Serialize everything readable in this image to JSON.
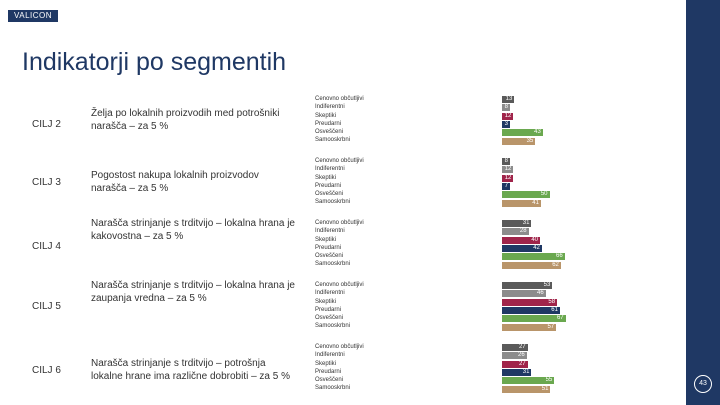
{
  "header": {
    "logo_text": "VALICON",
    "title": "Indikatorji po segmentih",
    "page_number": "43"
  },
  "segments": [
    "Cenovno občutljivi",
    "Indiferentni",
    "Skeptiki",
    "Preudarni",
    "Osveščeni",
    "Samooskrbni"
  ],
  "colors": {
    "Cenovno občutljivi": "#5a5a5a",
    "Indiferentni": "#8c8c8c",
    "Skeptiki": "#a0244a",
    "Preudarni": "#1f3864",
    "Osveščeni": "#6aa84f",
    "Samooskrbni": "#b9956a"
  },
  "rows": [
    {
      "goal": "CILJ 2",
      "description": "Želja po lokalnih proizvodih med potrošniki narašča – za 5 %",
      "values": [
        13,
        8,
        12,
        3,
        43,
        35
      ],
      "labels": [
        "13",
        "8",
        "12",
        "3",
        "43",
        "35"
      ]
    },
    {
      "goal": "CILJ 3",
      "description": "Pogostost nakupa lokalnih proizvodov narašča – za 5 %",
      "values": [
        8,
        12,
        12,
        7,
        50,
        41
      ],
      "labels": [
        "8",
        "12",
        "12",
        "7",
        "50",
        "41"
      ]
    },
    {
      "goal": "CILJ 4",
      "description": "Narašča strinjanje s trditvijo – lokalna hrana je kakovostna – za 5 %",
      "values": [
        31,
        28,
        40,
        42,
        66,
        62
      ],
      "labels": [
        "31",
        "28",
        "40",
        "42",
        "66",
        "62"
      ]
    },
    {
      "goal": "CILJ 5",
      "description": "Narašča strinjanje s trditvijo – lokalna hrana je zaupanja vredna – za 5 %",
      "values": [
        53,
        46,
        58,
        61,
        67,
        57
      ],
      "labels": [
        "53",
        "46",
        "58",
        "61",
        "67",
        "57"
      ]
    },
    {
      "goal": "CILJ 6",
      "description": "Narašča strinjanje s trditvijo – potrošnja lokalne hrane ima različne dobrobiti – za 5 %",
      "values": [
        27,
        26,
        27,
        31,
        55,
        51
      ],
      "labels": [
        "27",
        "26",
        "27",
        "31",
        "55",
        "51"
      ]
    }
  ],
  "chart_data": {
    "type": "bar",
    "categories": [
      "CILJ 2",
      "CILJ 3",
      "CILJ 4",
      "CILJ 5",
      "CILJ 6"
    ],
    "series": [
      {
        "name": "Cenovno občutljivi",
        "values": [
          13,
          8,
          31,
          53,
          27
        ]
      },
      {
        "name": "Indiferentni",
        "values": [
          8,
          12,
          28,
          46,
          26
        ]
      },
      {
        "name": "Skeptiki",
        "values": [
          12,
          12,
          40,
          58,
          27
        ]
      },
      {
        "name": "Preudarni",
        "values": [
          3,
          7,
          42,
          61,
          31
        ]
      },
      {
        "name": "Osveščeni",
        "values": [
          43,
          50,
          66,
          67,
          55
        ]
      },
      {
        "name": "Samooskrbni",
        "values": [
          35,
          41,
          62,
          57,
          51
        ]
      }
    ],
    "orientation": "horizontal"
  }
}
